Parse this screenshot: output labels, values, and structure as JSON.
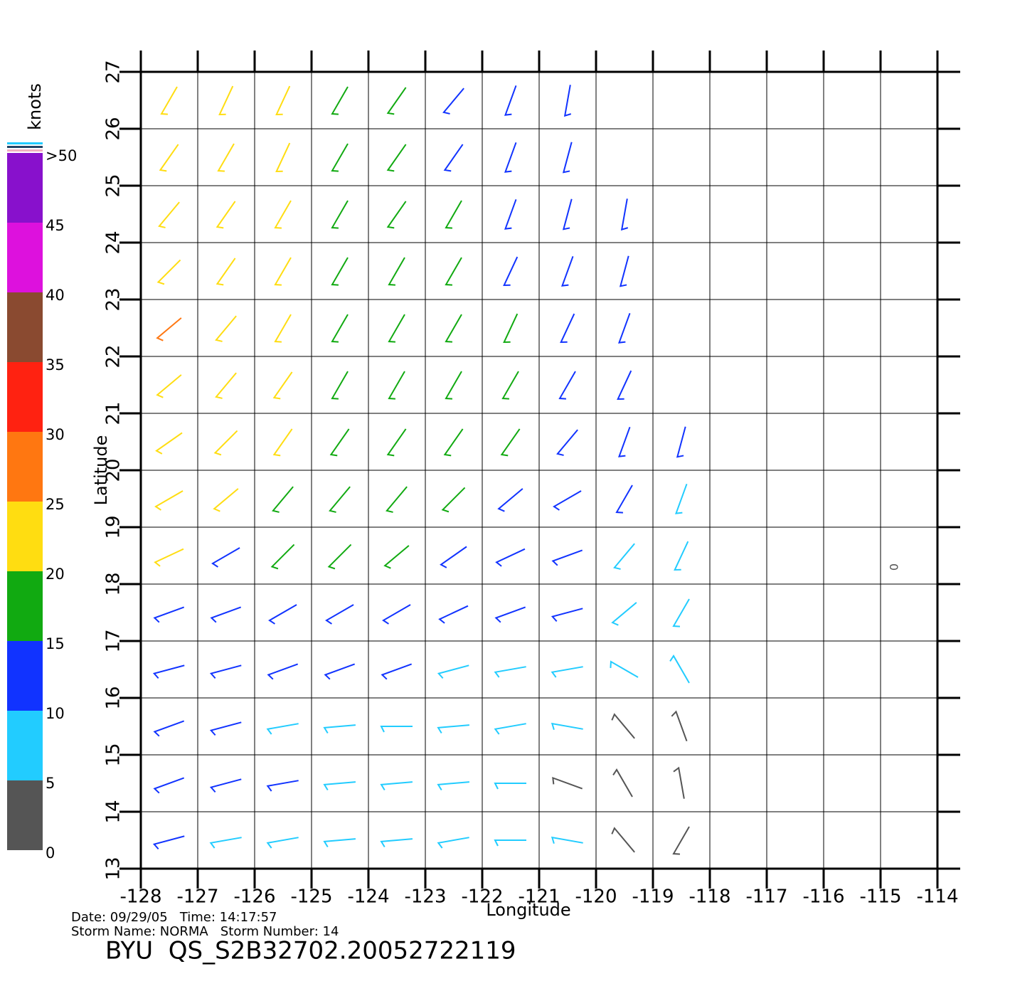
{
  "chart_data": {
    "type": "vector",
    "xlabel": "Longitude",
    "ylabel": "Latitude",
    "xlim": [
      -128,
      -114
    ],
    "ylim": [
      13,
      27
    ],
    "xticks": [
      -128,
      -127,
      -126,
      -125,
      -124,
      -123,
      -122,
      -121,
      -120,
      -119,
      -118,
      -117,
      -116,
      -115,
      -114
    ],
    "yticks": [
      13,
      14,
      15,
      16,
      17,
      18,
      19,
      20,
      21,
      22,
      23,
      24,
      25,
      26,
      27
    ],
    "grid": true,
    "colorbar": {
      "label": "knots",
      "lim": [
        0,
        50
      ],
      "ticks": [
        0,
        5,
        10,
        15,
        20,
        25,
        30,
        35,
        40,
        45,
        {
          "value": 50,
          "label": ">50"
        }
      ],
      "colors": [
        "#555555",
        "#22ccff",
        "#1133ff",
        "#11aa11",
        "#ffdd11",
        "#ff7711",
        "#ff2211",
        "#8a4a30",
        "#dd11dd",
        "#8811cc"
      ]
    },
    "lons": [
      -127.5,
      -126.5,
      -125.5,
      -124.5,
      -123.5,
      -122.5,
      -121.5,
      -120.5,
      -119.5,
      -118.5
    ],
    "lats": [
      26.5,
      25.5,
      24.5,
      23.5,
      22.5,
      21.5,
      20.5,
      19.5,
      18.5,
      17.5,
      16.5,
      15.5,
      14.5,
      13.5
    ],
    "speed": [
      [
        22,
        21,
        20,
        18,
        17,
        14,
        12,
        11,
        null,
        null
      ],
      [
        23,
        22,
        20,
        18,
        16,
        14,
        12,
        11,
        null,
        null
      ],
      [
        24,
        22,
        20,
        18,
        17,
        15,
        13,
        12,
        11,
        null
      ],
      [
        24,
        22,
        20,
        19,
        17,
        16,
        14,
        12,
        12,
        null
      ],
      [
        25,
        23,
        21,
        19,
        18,
        17,
        15,
        13,
        13,
        null
      ],
      [
        24,
        22,
        21,
        19,
        18,
        17,
        16,
        14,
        13,
        null
      ],
      [
        24,
        22,
        20,
        18,
        17,
        16,
        15,
        14,
        12,
        11
      ],
      [
        22,
        20,
        19,
        18,
        17,
        15,
        13,
        12,
        10,
        9
      ],
      [
        20,
        14,
        18,
        16,
        15,
        13,
        12,
        11,
        9,
        8
      ],
      [
        13,
        12,
        13,
        14,
        13,
        12,
        11,
        10,
        8,
        8
      ],
      [
        11,
        10,
        10,
        11,
        11,
        9,
        8,
        6,
        6,
        6
      ],
      [
        12,
        11,
        9,
        7,
        5,
        6,
        7,
        5,
        3,
        3
      ],
      [
        13,
        11,
        10,
        8,
        7,
        8,
        6,
        4,
        3,
        3
      ],
      [
        10,
        9,
        8,
        6,
        7,
        8,
        7,
        5,
        3,
        4
      ]
    ],
    "direction": [
      [
        30,
        25,
        25,
        30,
        35,
        40,
        20,
        10,
        null,
        null
      ],
      [
        35,
        30,
        25,
        30,
        35,
        35,
        20,
        15,
        null,
        null
      ],
      [
        40,
        35,
        30,
        30,
        35,
        30,
        20,
        15,
        10,
        null
      ],
      [
        45,
        35,
        30,
        30,
        30,
        30,
        25,
        20,
        15,
        null
      ],
      [
        50,
        40,
        30,
        30,
        30,
        30,
        25,
        25,
        20,
        null
      ],
      [
        50,
        40,
        35,
        30,
        30,
        30,
        30,
        30,
        25,
        null
      ],
      [
        55,
        45,
        35,
        35,
        35,
        35,
        35,
        40,
        20,
        15
      ],
      [
        60,
        50,
        40,
        40,
        40,
        45,
        50,
        60,
        30,
        20
      ],
      [
        65,
        60,
        45,
        45,
        50,
        55,
        65,
        70,
        40,
        25
      ],
      [
        70,
        70,
        60,
        60,
        60,
        65,
        70,
        75,
        50,
        30
      ],
      [
        75,
        75,
        70,
        70,
        70,
        75,
        80,
        80,
        120,
        150
      ],
      [
        70,
        75,
        80,
        85,
        90,
        85,
        80,
        100,
        140,
        160
      ],
      [
        70,
        75,
        80,
        85,
        85,
        85,
        90,
        110,
        150,
        170
      ],
      [
        75,
        80,
        80,
        85,
        85,
        80,
        90,
        100,
        140,
        30
      ]
    ],
    "annotations": [
      {
        "text": "0",
        "lon": -114.75,
        "lat": 18.3
      }
    ],
    "footer": {
      "line1": "Date: 09/29/05   Time: 14:17:57",
      "line2": "Storm Name: NORMA   Storm Number: 14",
      "title": "BYU  QS_S2B32702.20052722119"
    }
  }
}
